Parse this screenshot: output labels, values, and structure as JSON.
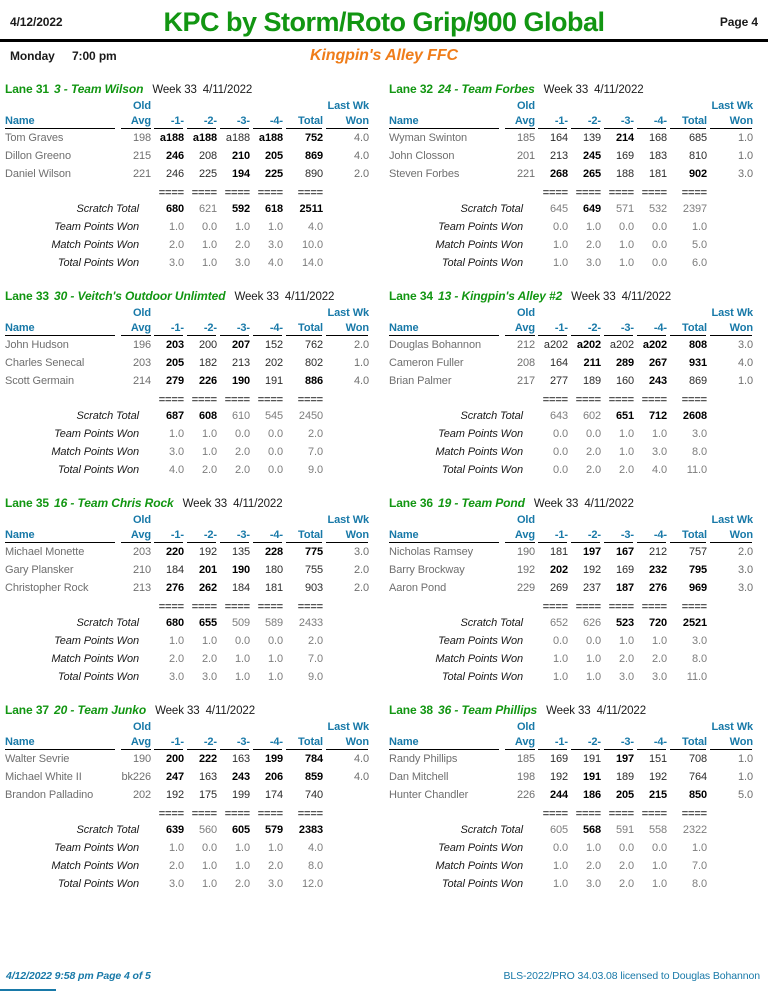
{
  "header": {
    "date": "4/12/2022",
    "title": "KPC by Storm/Roto Grip/900 Global",
    "page": "Page 4",
    "day": "Monday",
    "time": "7:00 pm",
    "center": "Kingpin's Alley FFC"
  },
  "table": {
    "old": "Old",
    "avg": "Avg",
    "name": "Name",
    "games": [
      "-1-",
      "-2-",
      "-3-",
      "-4-"
    ],
    "total": "Total",
    "lastwk": "Last Wk",
    "won": "Won",
    "separator": "====",
    "totals_labels": [
      "Scratch Total",
      "Team Points Won",
      "Match Points Won",
      "Total Points Won"
    ]
  },
  "panels": [
    {
      "lane": "Lane 31",
      "team": "3 - Team Wilson",
      "week": "Week 33",
      "date": "4/11/2022",
      "bowlers": [
        {
          "name": "Tom Graves",
          "avg": "198",
          "games": [
            "a188",
            "a188",
            "a188",
            "a188"
          ],
          "bold": [
            1,
            1,
            0,
            1
          ],
          "total": "752",
          "total_bold": 1,
          "won": "4.0"
        },
        {
          "name": "Dillon Greeno",
          "avg": "215",
          "games": [
            "246",
            "208",
            "210",
            "205"
          ],
          "bold": [
            1,
            0,
            1,
            1
          ],
          "total": "869",
          "total_bold": 1,
          "won": "4.0"
        },
        {
          "name": "Daniel Wilson",
          "avg": "221",
          "games": [
            "246",
            "225",
            "194",
            "225"
          ],
          "bold": [
            0,
            0,
            1,
            1
          ],
          "total": "890",
          "total_bold": 0,
          "won": "2.0"
        }
      ],
      "scratch": {
        "values": [
          "680",
          "621",
          "592",
          "618",
          "2511"
        ],
        "bold": [
          1,
          0,
          1,
          1,
          1
        ]
      },
      "team_points": [
        "1.0",
        "0.0",
        "1.0",
        "1.0",
        "4.0"
      ],
      "match_points": [
        "2.0",
        "1.0",
        "2.0",
        "3.0",
        "10.0"
      ],
      "total_points": [
        "3.0",
        "1.0",
        "3.0",
        "4.0",
        "14.0"
      ]
    },
    {
      "lane": "Lane 32",
      "team": "24 - Team Forbes",
      "week": "Week 33",
      "date": "4/11/2022",
      "bowlers": [
        {
          "name": "Wyman Swinton",
          "avg": "185",
          "games": [
            "164",
            "139",
            "214",
            "168"
          ],
          "bold": [
            0,
            0,
            1,
            0
          ],
          "total": "685",
          "total_bold": 0,
          "won": "1.0"
        },
        {
          "name": "John Closson",
          "avg": "201",
          "games": [
            "213",
            "245",
            "169",
            "183"
          ],
          "bold": [
            0,
            1,
            0,
            0
          ],
          "total": "810",
          "total_bold": 0,
          "won": "1.0"
        },
        {
          "name": "Steven Forbes",
          "avg": "221",
          "games": [
            "268",
            "265",
            "188",
            "181"
          ],
          "bold": [
            1,
            1,
            0,
            0
          ],
          "total": "902",
          "total_bold": 1,
          "won": "3.0"
        }
      ],
      "scratch": {
        "values": [
          "645",
          "649",
          "571",
          "532",
          "2397"
        ],
        "bold": [
          0,
          1,
          0,
          0,
          0
        ]
      },
      "team_points": [
        "0.0",
        "1.0",
        "0.0",
        "0.0",
        "1.0"
      ],
      "match_points": [
        "1.0",
        "2.0",
        "1.0",
        "0.0",
        "5.0"
      ],
      "total_points": [
        "1.0",
        "3.0",
        "1.0",
        "0.0",
        "6.0"
      ]
    },
    {
      "lane": "Lane 33",
      "team": "30 - Veitch's Outdoor Unlimted",
      "week": "Week 33",
      "date": "4/11/2022",
      "bowlers": [
        {
          "name": "John Hudson",
          "avg": "196",
          "games": [
            "203",
            "200",
            "207",
            "152"
          ],
          "bold": [
            1,
            0,
            1,
            0
          ],
          "total": "762",
          "total_bold": 0,
          "won": "2.0"
        },
        {
          "name": "Charles Senecal",
          "avg": "203",
          "games": [
            "205",
            "182",
            "213",
            "202"
          ],
          "bold": [
            1,
            0,
            0,
            0
          ],
          "total": "802",
          "total_bold": 0,
          "won": "1.0"
        },
        {
          "name": "Scott Germain",
          "avg": "214",
          "games": [
            "279",
            "226",
            "190",
            "191"
          ],
          "bold": [
            1,
            1,
            1,
            0
          ],
          "total": "886",
          "total_bold": 1,
          "won": "4.0"
        }
      ],
      "scratch": {
        "values": [
          "687",
          "608",
          "610",
          "545",
          "2450"
        ],
        "bold": [
          1,
          1,
          0,
          0,
          0
        ]
      },
      "team_points": [
        "1.0",
        "1.0",
        "0.0",
        "0.0",
        "2.0"
      ],
      "match_points": [
        "3.0",
        "1.0",
        "2.0",
        "0.0",
        "7.0"
      ],
      "total_points": [
        "4.0",
        "2.0",
        "2.0",
        "0.0",
        "9.0"
      ]
    },
    {
      "lane": "Lane 34",
      "team": "13 - Kingpin's Alley #2",
      "week": "Week 33",
      "date": "4/11/2022",
      "bowlers": [
        {
          "name": "Douglas Bohannon",
          "avg": "212",
          "games": [
            "a202",
            "a202",
            "a202",
            "a202"
          ],
          "bold": [
            0,
            1,
            0,
            1
          ],
          "total": "808",
          "total_bold": 1,
          "won": "3.0"
        },
        {
          "name": "Cameron Fuller",
          "avg": "208",
          "games": [
            "164",
            "211",
            "289",
            "267"
          ],
          "bold": [
            0,
            1,
            1,
            1
          ],
          "total": "931",
          "total_bold": 1,
          "won": "4.0"
        },
        {
          "name": "Brian Palmer",
          "avg": "217",
          "games": [
            "277",
            "189",
            "160",
            "243"
          ],
          "bold": [
            0,
            0,
            0,
            1
          ],
          "total": "869",
          "total_bold": 0,
          "won": "1.0"
        }
      ],
      "scratch": {
        "values": [
          "643",
          "602",
          "651",
          "712",
          "2608"
        ],
        "bold": [
          0,
          0,
          1,
          1,
          1
        ]
      },
      "team_points": [
        "0.0",
        "0.0",
        "1.0",
        "1.0",
        "3.0"
      ],
      "match_points": [
        "0.0",
        "2.0",
        "1.0",
        "3.0",
        "8.0"
      ],
      "total_points": [
        "0.0",
        "2.0",
        "2.0",
        "4.0",
        "11.0"
      ]
    },
    {
      "lane": "Lane 35",
      "team": "16 - Team Chris Rock",
      "week": "Week 33",
      "date": "4/11/2022",
      "bowlers": [
        {
          "name": "Michael Monette",
          "avg": "203",
          "games": [
            "220",
            "192",
            "135",
            "228"
          ],
          "bold": [
            1,
            0,
            0,
            1
          ],
          "total": "775",
          "total_bold": 1,
          "won": "3.0"
        },
        {
          "name": "Gary Plansker",
          "avg": "210",
          "games": [
            "184",
            "201",
            "190",
            "180"
          ],
          "bold": [
            0,
            1,
            1,
            0
          ],
          "total": "755",
          "total_bold": 0,
          "won": "2.0"
        },
        {
          "name": "Christopher Rock",
          "avg": "213",
          "games": [
            "276",
            "262",
            "184",
            "181"
          ],
          "bold": [
            1,
            1,
            0,
            0
          ],
          "total": "903",
          "total_bold": 0,
          "won": "2.0"
        }
      ],
      "scratch": {
        "values": [
          "680",
          "655",
          "509",
          "589",
          "2433"
        ],
        "bold": [
          1,
          1,
          0,
          0,
          0
        ]
      },
      "team_points": [
        "1.0",
        "1.0",
        "0.0",
        "0.0",
        "2.0"
      ],
      "match_points": [
        "2.0",
        "2.0",
        "1.0",
        "1.0",
        "7.0"
      ],
      "total_points": [
        "3.0",
        "3.0",
        "1.0",
        "1.0",
        "9.0"
      ]
    },
    {
      "lane": "Lane 36",
      "team": "19 - Team Pond",
      "week": "Week 33",
      "date": "4/11/2022",
      "bowlers": [
        {
          "name": "Nicholas Ramsey",
          "avg": "190",
          "games": [
            "181",
            "197",
            "167",
            "212"
          ],
          "bold": [
            0,
            1,
            1,
            0
          ],
          "total": "757",
          "total_bold": 0,
          "won": "2.0"
        },
        {
          "name": "Barry Brockway",
          "avg": "192",
          "games": [
            "202",
            "192",
            "169",
            "232"
          ],
          "bold": [
            1,
            0,
            0,
            1
          ],
          "total": "795",
          "total_bold": 1,
          "won": "3.0"
        },
        {
          "name": "Aaron Pond",
          "avg": "229",
          "games": [
            "269",
            "237",
            "187",
            "276"
          ],
          "bold": [
            0,
            0,
            1,
            1
          ],
          "total": "969",
          "total_bold": 1,
          "won": "3.0"
        }
      ],
      "scratch": {
        "values": [
          "652",
          "626",
          "523",
          "720",
          "2521"
        ],
        "bold": [
          0,
          0,
          1,
          1,
          1
        ]
      },
      "team_points": [
        "0.0",
        "0.0",
        "1.0",
        "1.0",
        "3.0"
      ],
      "match_points": [
        "1.0",
        "1.0",
        "2.0",
        "2.0",
        "8.0"
      ],
      "total_points": [
        "1.0",
        "1.0",
        "3.0",
        "3.0",
        "11.0"
      ]
    },
    {
      "lane": "Lane 37",
      "team": "20 - Team Junko",
      "week": "Week 33",
      "date": "4/11/2022",
      "bowlers": [
        {
          "name": "Walter Sevrie",
          "avg": "190",
          "games": [
            "200",
            "222",
            "163",
            "199"
          ],
          "bold": [
            1,
            1,
            0,
            1
          ],
          "total": "784",
          "total_bold": 1,
          "won": "4.0"
        },
        {
          "name": "Michael White II",
          "avg": "bk226",
          "games": [
            "247",
            "163",
            "243",
            "206"
          ],
          "bold": [
            1,
            0,
            1,
            1
          ],
          "total": "859",
          "total_bold": 1,
          "won": "4.0"
        },
        {
          "name": "Brandon Palladino",
          "avg": "202",
          "games": [
            "192",
            "175",
            "199",
            "174"
          ],
          "bold": [
            0,
            0,
            0,
            0
          ],
          "total": "740",
          "total_bold": 0,
          "won": ""
        }
      ],
      "scratch": {
        "values": [
          "639",
          "560",
          "605",
          "579",
          "2383"
        ],
        "bold": [
          1,
          0,
          1,
          1,
          1
        ]
      },
      "team_points": [
        "1.0",
        "0.0",
        "1.0",
        "1.0",
        "4.0"
      ],
      "match_points": [
        "2.0",
        "1.0",
        "1.0",
        "2.0",
        "8.0"
      ],
      "total_points": [
        "3.0",
        "1.0",
        "2.0",
        "3.0",
        "12.0"
      ]
    },
    {
      "lane": "Lane 38",
      "team": "36 - Team Phillips",
      "week": "Week 33",
      "date": "4/11/2022",
      "bowlers": [
        {
          "name": "Randy Phillips",
          "avg": "185",
          "games": [
            "169",
            "191",
            "197",
            "151"
          ],
          "bold": [
            0,
            0,
            1,
            0
          ],
          "total": "708",
          "total_bold": 0,
          "won": "1.0"
        },
        {
          "name": "Dan Mitchell",
          "avg": "198",
          "games": [
            "192",
            "191",
            "189",
            "192"
          ],
          "bold": [
            0,
            1,
            0,
            0
          ],
          "total": "764",
          "total_bold": 0,
          "won": "1.0"
        },
        {
          "name": "Hunter Chandler",
          "avg": "226",
          "games": [
            "244",
            "186",
            "205",
            "215"
          ],
          "bold": [
            1,
            1,
            1,
            1
          ],
          "total": "850",
          "total_bold": 1,
          "won": "5.0"
        }
      ],
      "scratch": {
        "values": [
          "605",
          "568",
          "591",
          "558",
          "2322"
        ],
        "bold": [
          0,
          1,
          0,
          0,
          0
        ]
      },
      "team_points": [
        "0.0",
        "1.0",
        "0.0",
        "0.0",
        "1.0"
      ],
      "match_points": [
        "1.0",
        "2.0",
        "2.0",
        "1.0",
        "7.0"
      ],
      "total_points": [
        "1.0",
        "3.0",
        "2.0",
        "1.0",
        "8.0"
      ]
    }
  ],
  "footer": {
    "left": "4/12/2022  9:58 pm  Page 4 of 5",
    "right": "BLS-2022/PRO 34.03.08 licensed to Douglas Bohannon"
  },
  "colors": {
    "green": "#129612",
    "orange": "#EF7D1A",
    "blue": "#1879A8",
    "gray": "#7d7d7d"
  }
}
